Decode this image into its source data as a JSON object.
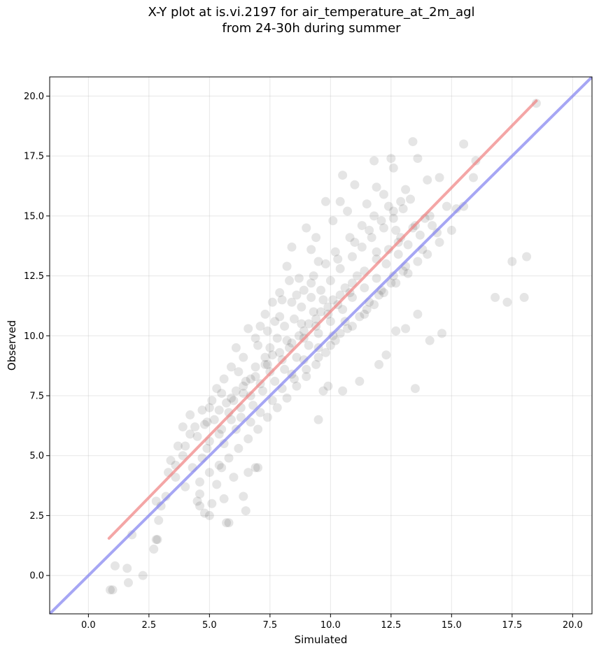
{
  "chart_data": {
    "type": "scatter",
    "title": "X-Y plot at is.vi.2197 for air_temperature_at_2m_agl\nfrom 24-30h during summer",
    "xlabel": "Simulated",
    "ylabel": "Observed",
    "xlim": [
      -1.6,
      20.8
    ],
    "ylim": [
      -1.6,
      20.8
    ],
    "x_ticks": [
      0.0,
      2.5,
      5.0,
      7.5,
      10.0,
      12.5,
      15.0,
      17.5,
      20.0
    ],
    "y_ticks": [
      0.0,
      2.5,
      5.0,
      7.5,
      10.0,
      12.5,
      15.0,
      17.5,
      20.0
    ],
    "x_tick_labels": [
      "0.0",
      "2.5",
      "5.0",
      "7.5",
      "10.0",
      "12.5",
      "15.0",
      "17.5",
      "20.0"
    ],
    "y_tick_labels": [
      "0.0",
      "2.5",
      "5.0",
      "7.5",
      "10.0",
      "12.5",
      "15.0",
      "17.5",
      "20.0"
    ],
    "grid": true,
    "colors": {
      "points": "#000000",
      "fit_line": "#f08080",
      "identity_line": "#8080f0"
    },
    "fit_line": {
      "x": [
        0.85,
        18.5
      ],
      "y": [
        1.55,
        19.8
      ]
    },
    "identity_line": {
      "x": [
        -1.6,
        20.8
      ],
      "y": [
        -1.6,
        20.8
      ]
    },
    "points": [
      [
        0.9,
        -0.6
      ],
      [
        1.0,
        -0.6
      ],
      [
        1.1,
        0.4
      ],
      [
        1.6,
        0.3
      ],
      [
        1.65,
        -0.3
      ],
      [
        2.25,
        0.0
      ],
      [
        1.8,
        1.7
      ],
      [
        2.7,
        1.1
      ],
      [
        2.85,
        1.5
      ],
      [
        2.8,
        1.5
      ],
      [
        2.9,
        2.3
      ],
      [
        3.0,
        2.9
      ],
      [
        2.8,
        3.1
      ],
      [
        3.2,
        3.3
      ],
      [
        3.3,
        4.3
      ],
      [
        3.4,
        4.8
      ],
      [
        3.7,
        5.4
      ],
      [
        3.6,
        4.1
      ],
      [
        4.0,
        3.7
      ],
      [
        4.2,
        6.7
      ],
      [
        3.9,
        6.2
      ],
      [
        4.5,
        3.1
      ],
      [
        4.6,
        3.4
      ],
      [
        4.6,
        2.9
      ],
      [
        4.8,
        2.6
      ],
      [
        5.0,
        2.5
      ],
      [
        5.1,
        3.0
      ],
      [
        5.3,
        3.8
      ],
      [
        5.6,
        3.2
      ],
      [
        5.7,
        2.2
      ],
      [
        5.8,
        2.2
      ],
      [
        6.4,
        3.3
      ],
      [
        6.5,
        2.7
      ],
      [
        5.5,
        4.5
      ],
      [
        6.0,
        4.1
      ],
      [
        6.6,
        4.3
      ],
      [
        6.9,
        4.5
      ],
      [
        7.0,
        4.5
      ],
      [
        9.5,
        6.5
      ],
      [
        10.5,
        7.7
      ],
      [
        9.9,
        7.9
      ],
      [
        9.7,
        7.7
      ],
      [
        11.2,
        8.1
      ],
      [
        12.0,
        8.8
      ],
      [
        12.3,
        9.2
      ],
      [
        12.7,
        10.2
      ],
      [
        13.1,
        10.3
      ],
      [
        13.5,
        7.8
      ],
      [
        13.6,
        10.9
      ],
      [
        14.1,
        9.8
      ],
      [
        14.6,
        10.1
      ],
      [
        16.8,
        11.6
      ],
      [
        17.3,
        11.4
      ],
      [
        17.5,
        13.1
      ],
      [
        18.0,
        11.6
      ],
      [
        18.1,
        13.3
      ],
      [
        18.5,
        19.7
      ],
      [
        15.5,
        18.0
      ],
      [
        16.0,
        17.3
      ],
      [
        15.9,
        16.6
      ],
      [
        15.5,
        15.4
      ],
      [
        15.2,
        15.3
      ],
      [
        14.5,
        16.6
      ],
      [
        14.0,
        16.5
      ],
      [
        13.4,
        18.1
      ],
      [
        13.6,
        17.4
      ],
      [
        12.5,
        17.4
      ],
      [
        12.6,
        17.0
      ],
      [
        11.8,
        17.3
      ],
      [
        11.9,
        16.2
      ],
      [
        10.5,
        16.7
      ],
      [
        11.0,
        16.3
      ],
      [
        9.0,
        14.5
      ],
      [
        9.4,
        14.1
      ],
      [
        9.8,
        15.6
      ],
      [
        10.4,
        15.6
      ],
      [
        9.2,
        13.6
      ],
      [
        8.4,
        13.7
      ],
      [
        8.2,
        12.9
      ],
      [
        8.3,
        12.3
      ],
      [
        7.9,
        11.8
      ],
      [
        7.6,
        11.4
      ],
      [
        7.1,
        10.4
      ],
      [
        6.6,
        10.3
      ],
      [
        6.1,
        9.5
      ],
      [
        5.9,
        8.7
      ],
      [
        5.6,
        8.2
      ],
      [
        5.3,
        7.8
      ],
      [
        5.1,
        7.3
      ],
      [
        4.7,
        6.9
      ],
      [
        4.4,
        6.2
      ],
      [
        4.2,
        5.9
      ],
      [
        4.0,
        5.4
      ],
      [
        3.9,
        5.0
      ],
      [
        3.6,
        4.6
      ],
      [
        4.3,
        4.5
      ],
      [
        4.7,
        4.9
      ],
      [
        5.0,
        5.6
      ],
      [
        5.4,
        5.9
      ],
      [
        5.2,
        6.5
      ],
      [
        5.8,
        6.8
      ],
      [
        6.0,
        7.3
      ],
      [
        6.4,
        7.6
      ],
      [
        6.7,
        8.2
      ],
      [
        6.9,
        8.7
      ],
      [
        7.3,
        9.1
      ],
      [
        7.5,
        9.5
      ],
      [
        7.8,
        9.9
      ],
      [
        8.1,
        10.4
      ],
      [
        8.5,
        10.7
      ],
      [
        8.8,
        11.2
      ],
      [
        9.2,
        11.6
      ],
      [
        9.6,
        11.9
      ],
      [
        10.0,
        12.3
      ],
      [
        10.4,
        12.8
      ],
      [
        10.9,
        13.3
      ],
      [
        11.3,
        13.7
      ],
      [
        11.7,
        14.1
      ],
      [
        12.2,
        14.5
      ],
      [
        12.6,
        14.9
      ],
      [
        13.0,
        15.3
      ],
      [
        13.3,
        15.7
      ],
      [
        12.8,
        13.9
      ],
      [
        13.5,
        14.6
      ],
      [
        14.1,
        15.0
      ],
      [
        14.4,
        14.3
      ],
      [
        13.8,
        13.6
      ],
      [
        13.1,
        12.9
      ],
      [
        12.6,
        12.5
      ],
      [
        12.1,
        11.9
      ],
      [
        11.6,
        11.4
      ],
      [
        11.2,
        10.8
      ],
      [
        10.7,
        10.3
      ],
      [
        10.2,
        9.8
      ],
      [
        9.8,
        9.3
      ],
      [
        9.4,
        8.8
      ],
      [
        9.0,
        8.3
      ],
      [
        8.6,
        7.9
      ],
      [
        8.2,
        7.4
      ],
      [
        7.8,
        7.0
      ],
      [
        7.4,
        6.6
      ],
      [
        7.0,
        6.1
      ],
      [
        6.6,
        5.7
      ],
      [
        6.2,
        5.3
      ],
      [
        5.8,
        4.9
      ],
      [
        5.4,
        4.6
      ],
      [
        5.0,
        4.3
      ],
      [
        4.6,
        3.9
      ],
      [
        6.3,
        6.6
      ],
      [
        6.8,
        7.1
      ],
      [
        7.2,
        7.7
      ],
      [
        7.7,
        8.1
      ],
      [
        8.1,
        8.6
      ],
      [
        8.6,
        9.1
      ],
      [
        9.1,
        9.6
      ],
      [
        9.5,
        10.1
      ],
      [
        10.0,
        10.6
      ],
      [
        10.5,
        11.1
      ],
      [
        10.9,
        11.6
      ],
      [
        11.4,
        12.0
      ],
      [
        11.9,
        12.4
      ],
      [
        12.3,
        13.0
      ],
      [
        12.8,
        13.4
      ],
      [
        13.2,
        13.8
      ],
      [
        13.7,
        14.2
      ],
      [
        14.2,
        14.6
      ],
      [
        7.0,
        9.6
      ],
      [
        7.4,
        10.2
      ],
      [
        7.9,
        10.8
      ],
      [
        8.4,
        11.4
      ],
      [
        8.9,
        11.9
      ],
      [
        9.3,
        12.5
      ],
      [
        9.8,
        13.0
      ],
      [
        10.2,
        13.5
      ],
      [
        10.8,
        14.1
      ],
      [
        11.3,
        14.6
      ],
      [
        11.8,
        15.0
      ],
      [
        12.4,
        15.4
      ],
      [
        12.9,
        15.6
      ],
      [
        8.0,
        9.0
      ],
      [
        8.3,
        9.5
      ],
      [
        8.7,
        10.0
      ],
      [
        9.1,
        10.5
      ],
      [
        9.6,
        11.0
      ],
      [
        10.1,
        11.5
      ],
      [
        10.6,
        12.0
      ],
      [
        11.1,
        12.5
      ],
      [
        7.5,
        8.5
      ],
      [
        7.1,
        8.0
      ],
      [
        6.7,
        7.5
      ],
      [
        6.3,
        7.0
      ],
      [
        5.9,
        6.5
      ],
      [
        5.5,
        6.1
      ],
      [
        8.9,
        9.9
      ],
      [
        9.4,
        10.4
      ],
      [
        9.9,
        10.9
      ],
      [
        10.3,
        11.3
      ],
      [
        10.8,
        11.8
      ],
      [
        7.6,
        9.2
      ],
      [
        8.2,
        9.8
      ],
      [
        8.8,
        10.5
      ],
      [
        9.3,
        11.0
      ],
      [
        9.7,
        11.5
      ],
      [
        6.5,
        8.1
      ],
      [
        6.1,
        7.7
      ],
      [
        5.7,
        7.2
      ],
      [
        7.3,
        8.8
      ],
      [
        8.4,
        8.4
      ],
      [
        8.9,
        9.0
      ],
      [
        9.5,
        9.5
      ],
      [
        10.1,
        10.0
      ],
      [
        10.6,
        10.6
      ],
      [
        11.5,
        11.1
      ],
      [
        12.0,
        11.7
      ],
      [
        12.5,
        12.2
      ],
      [
        13.0,
        12.7
      ],
      [
        11.9,
        13.5
      ],
      [
        12.7,
        14.4
      ],
      [
        10.1,
        14.8
      ],
      [
        10.7,
        15.2
      ],
      [
        11.5,
        15.5
      ],
      [
        12.2,
        15.9
      ],
      [
        13.1,
        16.1
      ],
      [
        9.5,
        13.1
      ],
      [
        8.7,
        12.4
      ],
      [
        8.0,
        11.5
      ],
      [
        7.3,
        10.9
      ],
      [
        6.9,
        9.9
      ],
      [
        6.4,
        9.1
      ],
      [
        6.2,
        8.5
      ],
      [
        5.5,
        7.6
      ],
      [
        5.0,
        7.0
      ],
      [
        4.8,
        6.3
      ],
      [
        4.5,
        5.8
      ],
      [
        4.9,
        5.3
      ],
      [
        5.6,
        5.5
      ],
      [
        6.1,
        6.1
      ],
      [
        6.7,
        6.4
      ],
      [
        7.1,
        6.8
      ],
      [
        7.6,
        7.3
      ],
      [
        8.0,
        7.8
      ],
      [
        8.5,
        8.2
      ],
      [
        9.0,
        8.6
      ],
      [
        9.5,
        9.1
      ],
      [
        10.0,
        9.6
      ],
      [
        10.4,
        10.1
      ],
      [
        10.9,
        10.4
      ],
      [
        11.4,
        10.9
      ],
      [
        11.8,
        11.3
      ],
      [
        12.2,
        11.8
      ],
      [
        12.7,
        12.2
      ],
      [
        13.2,
        12.6
      ],
      [
        13.6,
        13.1
      ],
      [
        14.0,
        13.4
      ],
      [
        14.5,
        13.9
      ],
      [
        15.0,
        14.4
      ],
      [
        14.8,
        15.4
      ],
      [
        13.9,
        14.9
      ],
      [
        13.4,
        14.5
      ],
      [
        12.9,
        14.1
      ],
      [
        12.4,
        13.6
      ],
      [
        11.9,
        13.2
      ],
      [
        11.4,
        12.7
      ],
      [
        10.9,
        12.2
      ],
      [
        10.4,
        11.7
      ],
      [
        9.9,
        11.2
      ],
      [
        9.4,
        10.7
      ],
      [
        8.9,
        10.2
      ],
      [
        8.4,
        9.7
      ],
      [
        7.9,
        9.3
      ],
      [
        7.4,
        8.8
      ],
      [
        6.9,
        8.3
      ],
      [
        6.4,
        7.9
      ],
      [
        5.9,
        7.4
      ],
      [
        5.4,
        6.9
      ],
      [
        4.9,
        6.4
      ],
      [
        7.7,
        10.6
      ],
      [
        8.6,
        11.7
      ],
      [
        9.2,
        12.2
      ],
      [
        10.3,
        13.2
      ],
      [
        11.0,
        13.9
      ],
      [
        11.6,
        14.4
      ],
      [
        12.1,
        14.8
      ],
      [
        12.6,
        15.2
      ]
    ]
  }
}
